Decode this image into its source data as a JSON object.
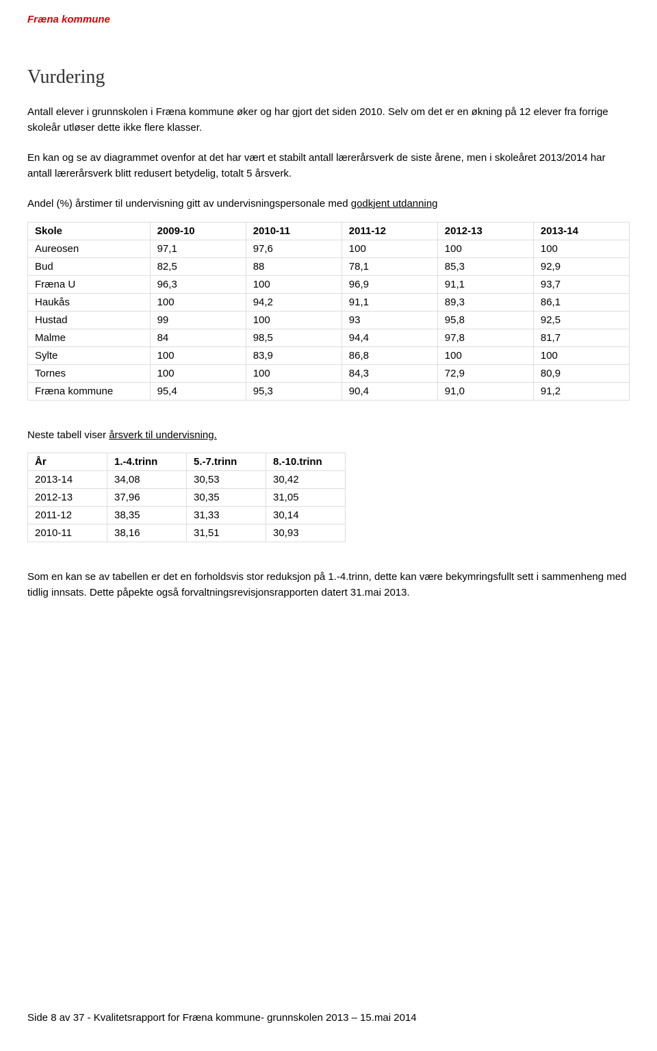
{
  "header": {
    "kommune": "Fræna kommune"
  },
  "title": "Vurdering",
  "para1": "Antall elever i grunnskolen i Fræna kommune øker og har gjort det siden 2010. Selv om det er en økning på 12 elever fra forrige skoleår utløser dette ikke flere klasser.",
  "para2": "En kan og se av diagrammet ovenfor at det har vært et stabilt antall lærerårsverk de siste årene, men i skoleåret 2013/2014 har antall lærerårsverk blitt redusert betydelig, totalt 5 årsverk.",
  "table1_label_prefix": "Andel (%) årstimer til undervisning gitt av undervisningspersonale med ",
  "table1_label_underline": "godkjent utdanning",
  "table1": {
    "columns": [
      "Skole",
      "2009-10",
      "2010-11",
      "2011-12",
      "2012-13",
      "2013-14"
    ],
    "rows": [
      [
        "Aureosen",
        "97,1",
        "97,6",
        "100",
        "100",
        "100"
      ],
      [
        "Bud",
        "82,5",
        "88",
        "78,1",
        "85,3",
        "92,9"
      ],
      [
        "Fræna U",
        "96,3",
        "100",
        "96,9",
        "91,1",
        "93,7"
      ],
      [
        "Haukås",
        "100",
        "94,2",
        "91,1",
        "89,3",
        "86,1"
      ],
      [
        "Hustad",
        "99",
        "100",
        "93",
        "95,8",
        "92,5"
      ],
      [
        "Malme",
        "84",
        "98,5",
        "94,4",
        "97,8",
        "81,7"
      ],
      [
        "Sylte",
        "100",
        "83,9",
        "86,8",
        "100",
        "100"
      ],
      [
        "Tornes",
        "100",
        "100",
        "84,3",
        "72,9",
        "80,9"
      ],
      [
        "Fræna kommune",
        "95,4",
        "95,3",
        "90,4",
        "91,0",
        "91,2"
      ]
    ]
  },
  "table2_label_prefix": "Neste tabell viser ",
  "table2_label_underline": "årsverk til undervisning.",
  "table2": {
    "columns": [
      "År",
      "1.-4.trinn",
      "5.-7.trinn",
      "8.-10.trinn"
    ],
    "rows": [
      [
        "2013-14",
        "34,08",
        "30,53",
        "30,42"
      ],
      [
        "2012-13",
        "37,96",
        "30,35",
        "31,05"
      ],
      [
        "2011-12",
        "38,35",
        "31,33",
        "30,14"
      ],
      [
        "2010-11",
        "38,16",
        "31,51",
        "30,93"
      ]
    ]
  },
  "para3": "Som en kan se av tabellen er det en forholdsvis stor reduksjon på 1.-4.trinn, dette kan være bekymringsfullt sett i sammenheng med tidlig innsats. Dette påpekte også forvaltningsrevisjonsrapporten datert 31.mai 2013.",
  "footer": "Side 8 av 37 - Kvalitetsrapport for Fræna kommune- grunnskolen 2013 – 15.mai 2014"
}
